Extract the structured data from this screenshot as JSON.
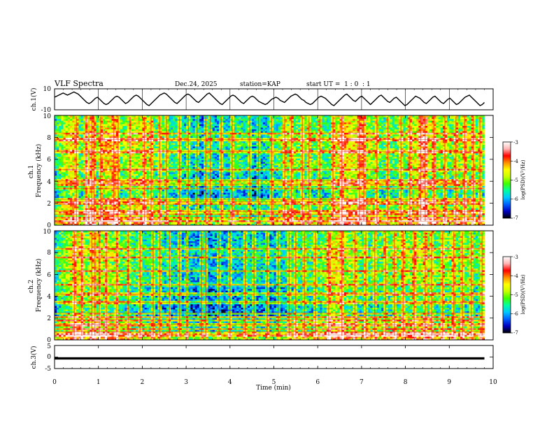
{
  "header": {
    "title": "VLF Spectra",
    "date": "Dec.24, 2025",
    "station": "station=KAP",
    "start": "start UT =  1 : 0  : 1"
  },
  "chart_data": [
    {
      "id": "ch1_waveform",
      "type": "line",
      "ylabel": "ch.1(V)",
      "ylim": [
        -10,
        10
      ],
      "yticks": [
        "10",
        "-10"
      ],
      "xlim": [
        0,
        10
      ],
      "series": [
        {
          "name": "ch.1 voltage",
          "x_start": 0,
          "x_end": 9.8,
          "values": [
            2,
            3,
            4,
            5,
            6,
            5,
            4,
            5,
            6,
            7,
            6,
            5,
            3,
            1,
            -1,
            -3,
            -4,
            -3,
            -1,
            1,
            2,
            0,
            -2,
            -4,
            -5,
            -4,
            -2,
            0,
            2,
            3,
            2,
            0,
            -2,
            -4,
            -3,
            -1,
            1,
            3,
            4,
            3,
            1,
            -1,
            -3,
            -5,
            -6,
            -4,
            -2,
            0,
            2,
            4,
            5,
            6,
            5,
            3,
            1,
            -1,
            -3,
            -4,
            -2,
            0,
            2,
            4,
            5,
            4,
            2,
            0,
            -2,
            -3,
            -1,
            1,
            3,
            5,
            6,
            4,
            2,
            0,
            -2,
            -4,
            -5,
            -3,
            -1,
            1,
            3,
            4,
            3,
            1,
            -1,
            -3,
            -4,
            -2,
            0,
            2,
            3,
            2,
            0,
            -2,
            -3,
            -4,
            -5,
            -4,
            -2,
            0,
            1,
            2,
            1,
            -1,
            -2,
            -3,
            -1,
            1,
            3,
            4,
            5,
            4,
            2,
            0,
            -1,
            -3,
            -4,
            -5,
            -4,
            -2,
            0,
            2,
            3,
            2,
            1,
            -1,
            -3,
            -5,
            -6,
            -4,
            -2,
            0,
            2,
            4,
            5,
            3,
            1,
            -1,
            -2,
            0,
            2,
            3,
            1,
            -1,
            -3,
            -5,
            -3,
            -1,
            1,
            3,
            4,
            2,
            0,
            -2,
            -3,
            -1,
            1,
            2,
            0,
            -2,
            -4,
            -6,
            -5,
            -3,
            -1,
            1,
            3,
            2,
            1,
            -1,
            -3,
            -4,
            -2,
            0,
            2,
            3,
            1,
            -1,
            -3,
            -4,
            -2,
            0,
            1,
            -1,
            -3,
            -5,
            -4,
            -2,
            0,
            2,
            3,
            4,
            2,
            0,
            -2,
            -4,
            -6,
            -5,
            -3
          ]
        }
      ]
    },
    {
      "id": "ch1_spectrogram",
      "type": "heatmap",
      "ylabel": "ch.1\nFrequency (kHz)",
      "xlim": [
        0,
        10
      ],
      "ylim": [
        0,
        10
      ],
      "yticks": [
        "0",
        "2",
        "4",
        "6",
        "8",
        "10"
      ],
      "colorbar": {
        "label": "log(PSD)(V²/Hz)",
        "range": [
          -7,
          -3
        ],
        "ticks": [
          "-3",
          "-4",
          "-5",
          "-6",
          "-7"
        ]
      },
      "data_end_min": 9.8,
      "level_profile": [
        [
          0,
          -5.8
        ],
        [
          0.2,
          -5.0
        ],
        [
          0.4,
          -4.6
        ],
        [
          0.6,
          -5.5
        ],
        [
          0.8,
          -4.7
        ],
        [
          1.0,
          -5.4
        ],
        [
          1.2,
          -4.5
        ],
        [
          1.5,
          -5.3
        ],
        [
          1.8,
          -4.9
        ],
        [
          2.0,
          -4.8
        ],
        [
          2.3,
          -5.4
        ],
        [
          2.8,
          -5.6
        ],
        [
          3.0,
          -5.9
        ],
        [
          3.3,
          -6.2
        ],
        [
          3.6,
          -6.0
        ],
        [
          3.9,
          -5.8
        ],
        [
          4.2,
          -5.5
        ],
        [
          4.6,
          -6.2
        ],
        [
          4.9,
          -5.8
        ],
        [
          5.3,
          -5.2
        ],
        [
          5.8,
          -5.4
        ],
        [
          6.2,
          -5.5
        ],
        [
          6.6,
          -4.4
        ],
        [
          7.0,
          -4.8
        ],
        [
          7.5,
          -5.5
        ],
        [
          8.0,
          -5.3
        ],
        [
          8.4,
          -4.5
        ],
        [
          8.7,
          -5.0
        ],
        [
          9.0,
          -5.3
        ],
        [
          9.4,
          -5.0
        ],
        [
          9.7,
          -5.4
        ],
        [
          10.0,
          -5.3
        ]
      ],
      "transient_minutes": [
        0.5,
        0.72,
        0.85,
        0.9,
        1.05,
        1.35,
        1.45,
        1.72,
        2.05,
        2.2,
        2.4,
        2.55,
        2.85,
        3.05,
        3.25,
        3.45,
        3.55,
        3.8,
        4.05,
        4.45,
        4.65,
        4.95,
        5.25,
        5.4,
        5.65,
        5.8,
        6.05,
        6.35,
        6.55,
        6.95,
        7.05,
        7.35,
        7.6,
        7.9,
        8.1,
        8.35,
        8.45,
        8.65,
        8.9,
        9.15,
        9.35,
        9.55,
        9.7
      ],
      "line_frequencies_khz": [
        0.35,
        0.7,
        1.0,
        1.25,
        1.9,
        2.15,
        2.35,
        3.35,
        3.75,
        4.05,
        5.05,
        6.7,
        7.8,
        8.4
      ]
    },
    {
      "id": "ch2_spectrogram",
      "type": "heatmap",
      "ylabel": "ch.2\nFrequency (kHz)",
      "xlim": [
        0,
        10
      ],
      "ylim": [
        0,
        10
      ],
      "yticks": [
        "0",
        "2",
        "4",
        "6",
        "8",
        "10"
      ],
      "colorbar": {
        "label": "log(PSD)(V²/Hz)",
        "range": [
          -7,
          -3
        ],
        "ticks": [
          "-3",
          "-4",
          "-5",
          "-6",
          "-7"
        ]
      },
      "data_end_min": 9.8,
      "level_profile": [
        [
          0,
          -5.8
        ],
        [
          0.2,
          -5.2
        ],
        [
          0.5,
          -4.7
        ],
        [
          0.8,
          -5.2
        ],
        [
          1.1,
          -5.0
        ],
        [
          1.6,
          -5.4
        ],
        [
          2.0,
          -5.6
        ],
        [
          2.5,
          -5.8
        ],
        [
          3.0,
          -6.0
        ],
        [
          3.5,
          -6.2
        ],
        [
          4.0,
          -6.0
        ],
        [
          4.5,
          -5.8
        ],
        [
          5.0,
          -6.0
        ],
        [
          5.5,
          -5.6
        ],
        [
          6.0,
          -5.5
        ],
        [
          6.4,
          -4.6
        ],
        [
          6.8,
          -5.2
        ],
        [
          7.2,
          -5.5
        ],
        [
          7.7,
          -5.3
        ],
        [
          8.3,
          -5.0
        ],
        [
          8.7,
          -5.3
        ],
        [
          9.2,
          -5.2
        ],
        [
          9.6,
          -5.5
        ],
        [
          10.0,
          -5.4
        ]
      ],
      "transient_minutes": [
        0.45,
        0.62,
        0.85,
        0.92,
        1.02,
        1.18,
        1.42,
        1.68,
        1.95,
        2.25,
        2.4,
        2.62,
        2.85,
        3.02,
        3.35,
        3.45,
        3.75,
        4.0,
        4.35,
        4.55,
        4.85,
        5.1,
        5.35,
        5.5,
        5.7,
        5.95,
        6.25,
        6.55,
        6.85,
        7.1,
        7.3,
        7.55,
        7.75,
        7.95,
        8.2,
        8.45,
        8.6,
        8.85,
        9.1,
        9.3,
        9.5,
        9.75
      ],
      "line_frequencies_khz": [
        0.45,
        0.75,
        1.0,
        1.4,
        1.85,
        2.1,
        2.45,
        3.45,
        4.2,
        5.05,
        6.3,
        7.55,
        8.35
      ]
    },
    {
      "id": "ch3_waveform",
      "type": "line",
      "ylabel": "ch.3(V)",
      "ylim": [
        -5,
        5
      ],
      "yticks": [
        "5",
        "0",
        "-5"
      ],
      "xlim": [
        0,
        10
      ],
      "xlabel": "Time (min)",
      "xticks": [
        "0",
        "1",
        "2",
        "3",
        "4",
        "5",
        "6",
        "7",
        "8",
        "9",
        "10"
      ],
      "series": [
        {
          "name": "ch.3 voltage",
          "x_start": 0,
          "x_end": 9.8,
          "mean": -0.6,
          "band": [
            -1.1,
            -0.1
          ]
        }
      ]
    }
  ],
  "colors": {
    "trace": "#000000",
    "colormap": [
      "#000000",
      "#0000c0",
      "#0060ff",
      "#00c8ff",
      "#00ffa0",
      "#40ff00",
      "#c8ff00",
      "#ffff00",
      "#ff9000",
      "#ff0000",
      "#ffb4b4",
      "#ffffff"
    ]
  }
}
